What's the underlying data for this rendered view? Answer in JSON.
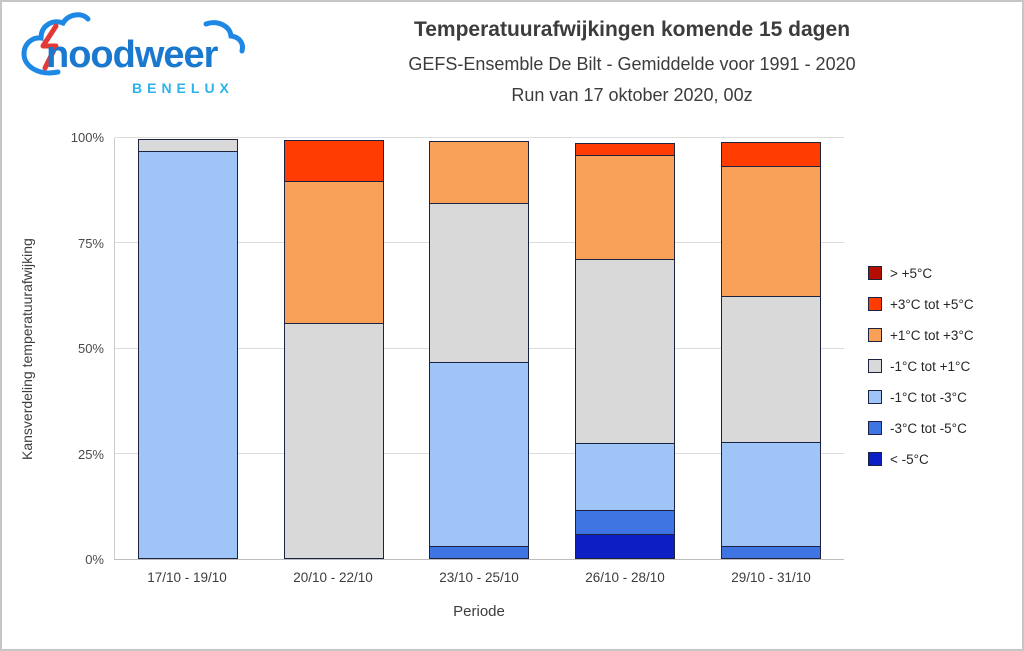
{
  "logo": {
    "name": "noodweer",
    "region": "BENELUX"
  },
  "header": {
    "title": "Temperatuurafwijkingen komende 15 dagen",
    "subtitle": "GEFS-Ensemble De Bilt - Gemiddelde voor 1991 - 2020",
    "run_line": "Run van 17 oktober 2020, 00z"
  },
  "chart_data": {
    "type": "bar",
    "variant": "stacked-100-percent",
    "title": "Temperatuurafwijkingen komende 15 dagen",
    "categories": [
      "17/10 - 19/10",
      "20/10 - 22/10",
      "23/10 - 25/10",
      "26/10 - 28/10",
      "29/10 - 31/10"
    ],
    "series": [
      {
        "name": "> +5°C",
        "color": "#b50d00",
        "values": [
          0,
          0,
          0,
          0,
          0
        ]
      },
      {
        "name": "+3°C tot +5°C",
        "color": "#ff3d00",
        "values": [
          0,
          10,
          0,
          3,
          6
        ]
      },
      {
        "name": "+1°C tot +3°C",
        "color": "#f9a159",
        "values": [
          0,
          34,
          15,
          25,
          31
        ]
      },
      {
        "name": "-1°C tot +1°C",
        "color": "#d9d9d9",
        "values": [
          3,
          56,
          38,
          44,
          35
        ]
      },
      {
        "name": "-1°C tot -3°C",
        "color": "#9fc5f8",
        "values": [
          97,
          0,
          44,
          16,
          25
        ]
      },
      {
        "name": "-3°C tot -5°C",
        "color": "#3f74e3",
        "values": [
          0,
          0,
          3,
          6,
          3
        ]
      },
      {
        "name": "< -5°C",
        "color": "#0b1fc4",
        "values": [
          0,
          0,
          0,
          6,
          0
        ]
      }
    ],
    "xlabel": "Periode",
    "ylabel": "Kansverdeling temperatuurafwijking",
    "ylim": [
      0,
      100
    ],
    "yticks": [
      0,
      25,
      50,
      75,
      100
    ],
    "ytick_suffix": "%",
    "grid": true,
    "legend_position": "right",
    "segment_border_color": "#1c2240"
  }
}
